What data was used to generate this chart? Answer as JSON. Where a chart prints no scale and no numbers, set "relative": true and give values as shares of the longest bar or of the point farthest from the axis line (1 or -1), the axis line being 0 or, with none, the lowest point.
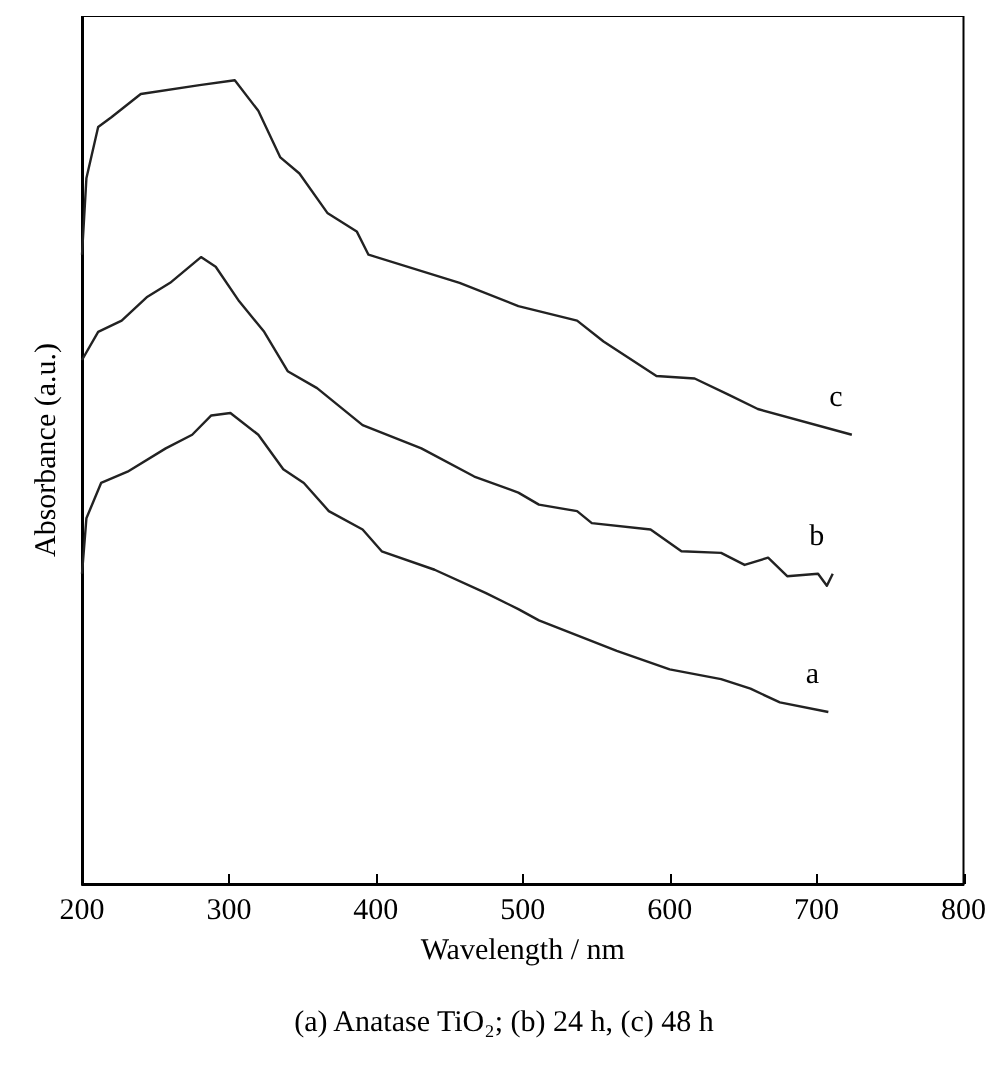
{
  "chart_data": {
    "type": "line",
    "title": "(a) Anatase TiO₂; (b) 24 h, (c) 48 h",
    "xlabel": "Wavelength / nm",
    "ylabel": "Absorbance (a.u.)",
    "relative": true,
    "xlim": [
      200,
      800
    ],
    "xticks": [
      200,
      300,
      400,
      500,
      600,
      700,
      800
    ],
    "grid": false,
    "legend": false,
    "marker": "none",
    "line_style": "solid",
    "series": [
      {
        "name": "a",
        "color": "#222222",
        "x": [
          200,
          203,
          213,
          231,
          257,
          275,
          288,
          301,
          320,
          337,
          351,
          368,
          391,
          404,
          440,
          475,
          497,
          511,
          564,
          600,
          635,
          655,
          675,
          708
        ],
        "values": [
          0.386,
          0.455,
          0.499,
          0.513,
          0.542,
          0.559,
          0.583,
          0.586,
          0.559,
          0.516,
          0.499,
          0.464,
          0.441,
          0.414,
          0.391,
          0.362,
          0.342,
          0.328,
          0.29,
          0.267,
          0.255,
          0.243,
          0.226,
          0.214
        ]
      },
      {
        "name": "b",
        "color": "#222222",
        "x": [
          200,
          211,
          227,
          244,
          260,
          281,
          291,
          307,
          324,
          340,
          360,
          391,
          431,
          467,
          497,
          511,
          537,
          547,
          587,
          608,
          635,
          651,
          667,
          680,
          701,
          707,
          711
        ],
        "values": [
          0.652,
          0.687,
          0.701,
          0.73,
          0.748,
          0.78,
          0.768,
          0.725,
          0.687,
          0.638,
          0.617,
          0.571,
          0.542,
          0.507,
          0.487,
          0.472,
          0.464,
          0.449,
          0.441,
          0.414,
          0.412,
          0.397,
          0.406,
          0.383,
          0.386,
          0.371,
          0.386
        ]
      },
      {
        "name": "c",
        "color": "#222222",
        "x": [
          200,
          203,
          211,
          220,
          240,
          280,
          304,
          320,
          335,
          348,
          367,
          387,
          395,
          457,
          497,
          537,
          555,
          591,
          617,
          640,
          660,
          724
        ],
        "values": [
          0.783,
          0.878,
          0.942,
          0.954,
          0.983,
          0.994,
          1.0,
          0.962,
          0.904,
          0.884,
          0.835,
          0.812,
          0.783,
          0.748,
          0.719,
          0.701,
          0.675,
          0.632,
          0.629,
          0.609,
          0.591,
          0.559
        ]
      }
    ]
  }
}
